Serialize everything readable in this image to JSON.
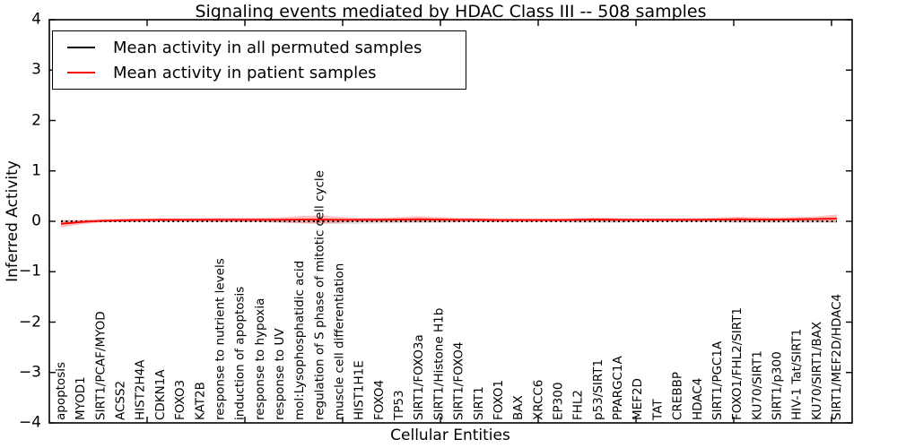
{
  "chart_data": {
    "type": "line",
    "title": "Signaling events mediated by HDAC Class III -- 508 samples",
    "xlabel": "Cellular Entities",
    "ylabel": "Inferred Activity",
    "ylim": [
      -4,
      4
    ],
    "yticks": [
      4,
      3,
      2,
      1,
      0,
      -1,
      -2,
      -3,
      -4
    ],
    "grid": false,
    "legend_position": "upper left",
    "categories": [
      "apoptosis",
      "MYOD1",
      "SIRT1/PCAF/MYOD",
      "ACSS2",
      "HIST2H4A",
      "CDKN1A",
      "FOXO3",
      "KAT2B",
      "response to nutrient levels",
      "induction of apoptosis",
      "response to hypoxia",
      "response to UV",
      "mol:Lysophosphatidic acid",
      "regulation of S phase of mitotic cell cycle",
      "muscle cell differentiation",
      "HIST1H1E",
      "FOXO4",
      "TP53",
      "SIRT1/FOXO3a",
      "SIRT1/Histone H1b",
      "SIRT1/FOXO4",
      "SIRT1",
      "FOXO1",
      "BAX",
      "XRCC6",
      "EP300",
      "FHL2",
      "p53/SIRT1",
      "PPARGC1A",
      "MEF2D",
      "TAT",
      "CREBBP",
      "HDAC4",
      "SIRT1/PGC1A",
      "FOXO1/FHL2/SIRT1",
      "KU70/SIRT1",
      "SIRT1/p300",
      "HIV-1 Tat/SIRT1",
      "KU70/SIRT1/BAX",
      "SIRT1/MEF2D/HDAC4"
    ],
    "series": [
      {
        "name": "Mean activity in all permuted samples",
        "color": "#000000",
        "line_style": "dotted",
        "band_color": "#aaaaaa",
        "band_opacity": 0.35,
        "values": [
          0,
          0,
          0,
          0,
          0,
          0,
          0,
          0,
          0,
          0,
          0,
          0,
          0,
          0,
          0,
          0,
          0,
          0,
          0,
          0,
          0,
          0,
          0,
          0,
          0,
          0,
          0,
          0,
          0,
          0,
          0,
          0,
          0,
          0,
          0,
          0,
          0,
          0,
          0,
          0
        ],
        "band_half_width": [
          0.03,
          0.02,
          0.02,
          0.02,
          0.02,
          0.02,
          0.02,
          0.02,
          0.02,
          0.02,
          0.02,
          0.03,
          0.04,
          0.05,
          0.05,
          0.05,
          0.04,
          0.04,
          0.03,
          0.03,
          0.02,
          0.02,
          0.02,
          0.02,
          0.02,
          0.02,
          0.03,
          0.03,
          0.03,
          0.02,
          0.02,
          0.02,
          0.02,
          0.02,
          0.03,
          0.03,
          0.03,
          0.03,
          0.03,
          0.03
        ]
      },
      {
        "name": "Mean activity in patient samples",
        "color": "#ff0000",
        "line_style": "solid",
        "band_color": "#ff0000",
        "band_opacity": 0.25,
        "values": [
          -0.05,
          -0.015,
          0.01,
          0.02,
          0.025,
          0.03,
          0.03,
          0.03,
          0.03,
          0.03,
          0.03,
          0.03,
          0.035,
          0.035,
          0.03,
          0.03,
          0.03,
          0.035,
          0.04,
          0.035,
          0.03,
          0.03,
          0.025,
          0.025,
          0.025,
          0.025,
          0.03,
          0.035,
          0.03,
          0.03,
          0.03,
          0.03,
          0.03,
          0.035,
          0.04,
          0.035,
          0.035,
          0.04,
          0.045,
          0.055
        ],
        "band_half_width": [
          0.07,
          0.045,
          0.03,
          0.03,
          0.03,
          0.03,
          0.03,
          0.035,
          0.04,
          0.04,
          0.04,
          0.05,
          0.07,
          0.08,
          0.06,
          0.04,
          0.04,
          0.05,
          0.06,
          0.05,
          0.04,
          0.035,
          0.035,
          0.03,
          0.03,
          0.03,
          0.035,
          0.04,
          0.035,
          0.03,
          0.03,
          0.035,
          0.035,
          0.04,
          0.05,
          0.05,
          0.04,
          0.045,
          0.05,
          0.08
        ]
      }
    ]
  }
}
